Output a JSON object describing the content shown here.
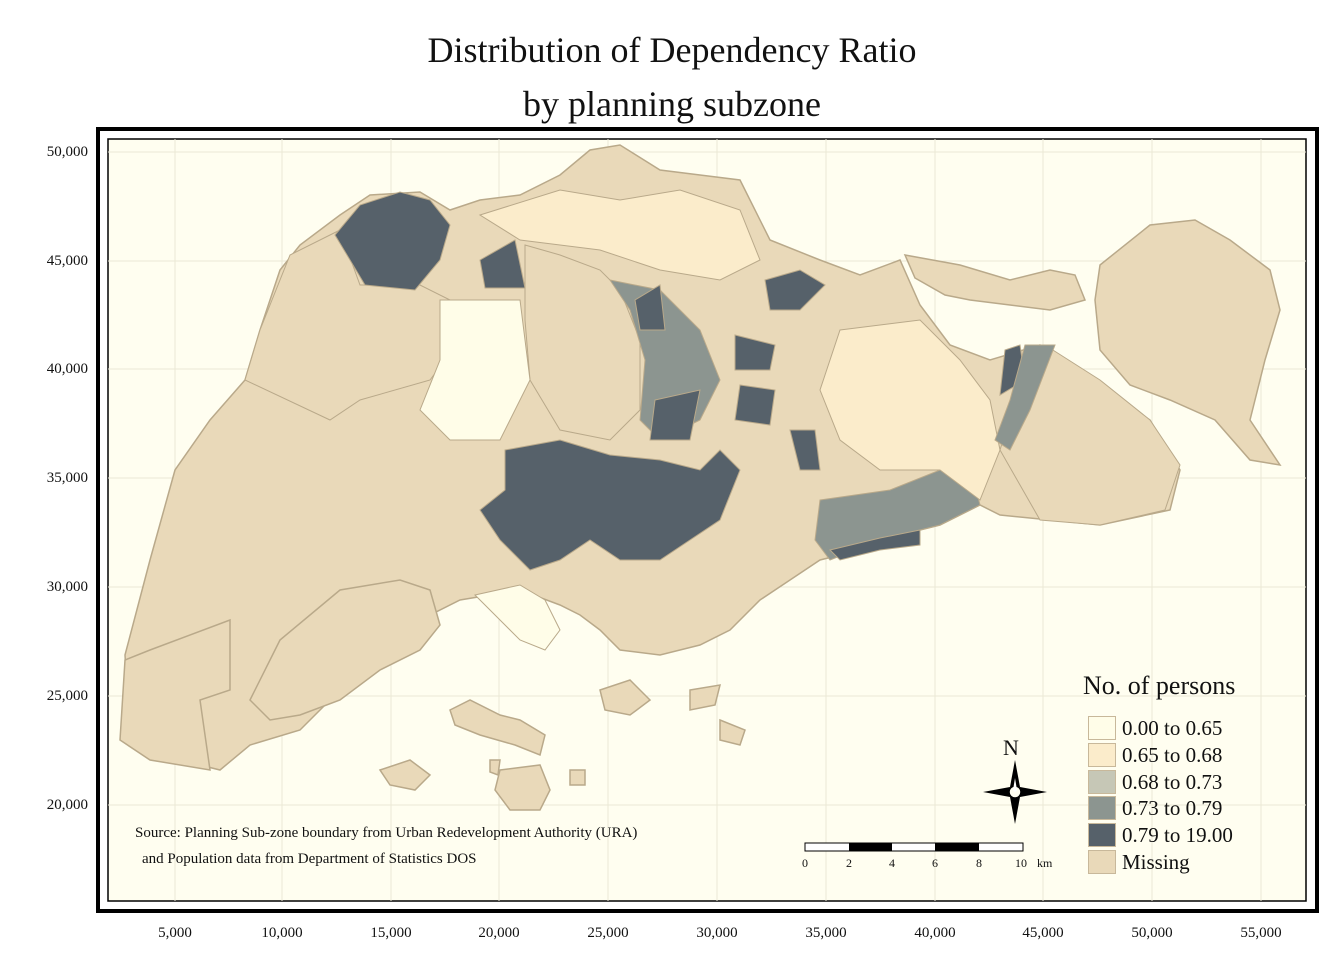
{
  "title": {
    "line1": "Distribution of Dependency Ratio",
    "line2": "by planning subzone"
  },
  "axes": {
    "y_ticks": [
      "50,000",
      "45,000",
      "40,000",
      "35,000",
      "30,000",
      "25,000",
      "20,000"
    ],
    "x_ticks": [
      "5,000",
      "10,000",
      "15,000",
      "20,000",
      "25,000",
      "30,000",
      "35,000",
      "40,000",
      "45,000",
      "50,000",
      "55,000"
    ]
  },
  "legend": {
    "title": "No. of persons",
    "items": [
      {
        "label": "0.00 to 0.65",
        "color": "#fffde8"
      },
      {
        "label": "0.65 to 0.68",
        "color": "#fbeccb"
      },
      {
        "label": "0.68 to 0.73",
        "color": "#c6c7b6"
      },
      {
        "label": "0.73 to 0.79",
        "color": "#8c9590"
      },
      {
        "label": "0.79 to 19.00",
        "color": "#56616a"
      },
      {
        "label": "Missing",
        "color": "#e9d9b9"
      }
    ]
  },
  "source": {
    "line1": "Source: Planning Sub-zone boundary from Urban Redevelopment Authority (URA)",
    "line2": "and Population data from Department of Statistics DOS"
  },
  "compass": {
    "label": "N"
  },
  "scale_bar": {
    "labels": [
      "0",
      "2",
      "4",
      "6",
      "8",
      "10"
    ],
    "unit": "km"
  },
  "colors": {
    "background": "#fffef0",
    "border": "#b9a98a",
    "grid": "#e8e6d4",
    "frame": "#000000"
  }
}
